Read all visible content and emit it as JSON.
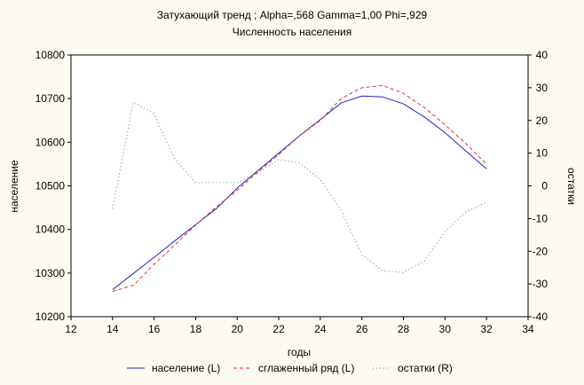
{
  "chart_data": {
    "type": "line",
    "title": "Затухающий тренд ; Alpha=,568 Gamma=1,00 Phi=,929",
    "subtitle": "Численность населения",
    "xlabel": "годы",
    "ylabel_left": "население",
    "ylabel_right": "остатки",
    "xlim": [
      12,
      34
    ],
    "ylim_left": [
      10200,
      10800
    ],
    "ylim_right": [
      -40,
      40
    ],
    "x_ticks": [
      12,
      14,
      16,
      18,
      20,
      22,
      24,
      26,
      28,
      30,
      32,
      34
    ],
    "y_ticks_left": [
      10200,
      10300,
      10400,
      10500,
      10600,
      10700,
      10800
    ],
    "y_ticks_right": [
      -40,
      -30,
      -20,
      -10,
      0,
      10,
      20,
      30,
      40
    ],
    "legend_position": "bottom",
    "x": [
      14,
      15,
      16,
      17,
      18,
      19,
      20,
      21,
      22,
      23,
      24,
      25,
      26,
      27,
      28,
      29,
      30,
      31,
      32
    ],
    "series": [
      {
        "name": "население (L)",
        "axis": "left",
        "color": "#2020d0",
        "dash": "",
        "values": [
          10262,
          10299,
          10336,
          10374,
          10411,
          10448,
          10495,
          10535,
          10575,
          10615,
          10652,
          10690,
          10706,
          10704,
          10688,
          10658,
          10622,
          10580,
          10539
        ]
      },
      {
        "name": "сглаженный ряд (L)",
        "axis": "left",
        "color": "#e03030",
        "dash": "4,3",
        "values": [
          10258,
          10272,
          10320,
          10365,
          10410,
          10452,
          10490,
          10532,
          10572,
          10615,
          10650,
          10700,
          10725,
          10730,
          10712,
          10680,
          10640,
          10597,
          10550
        ]
      },
      {
        "name": "остатки (R)",
        "axis": "right",
        "color": "#40a040",
        "dash": "1,3",
        "values": [
          -7,
          25.6,
          22,
          8,
          1,
          1,
          1,
          4,
          8,
          7,
          2,
          -7.5,
          -21,
          -26,
          -26.5,
          -23,
          -14,
          -8,
          -5
        ]
      }
    ]
  }
}
